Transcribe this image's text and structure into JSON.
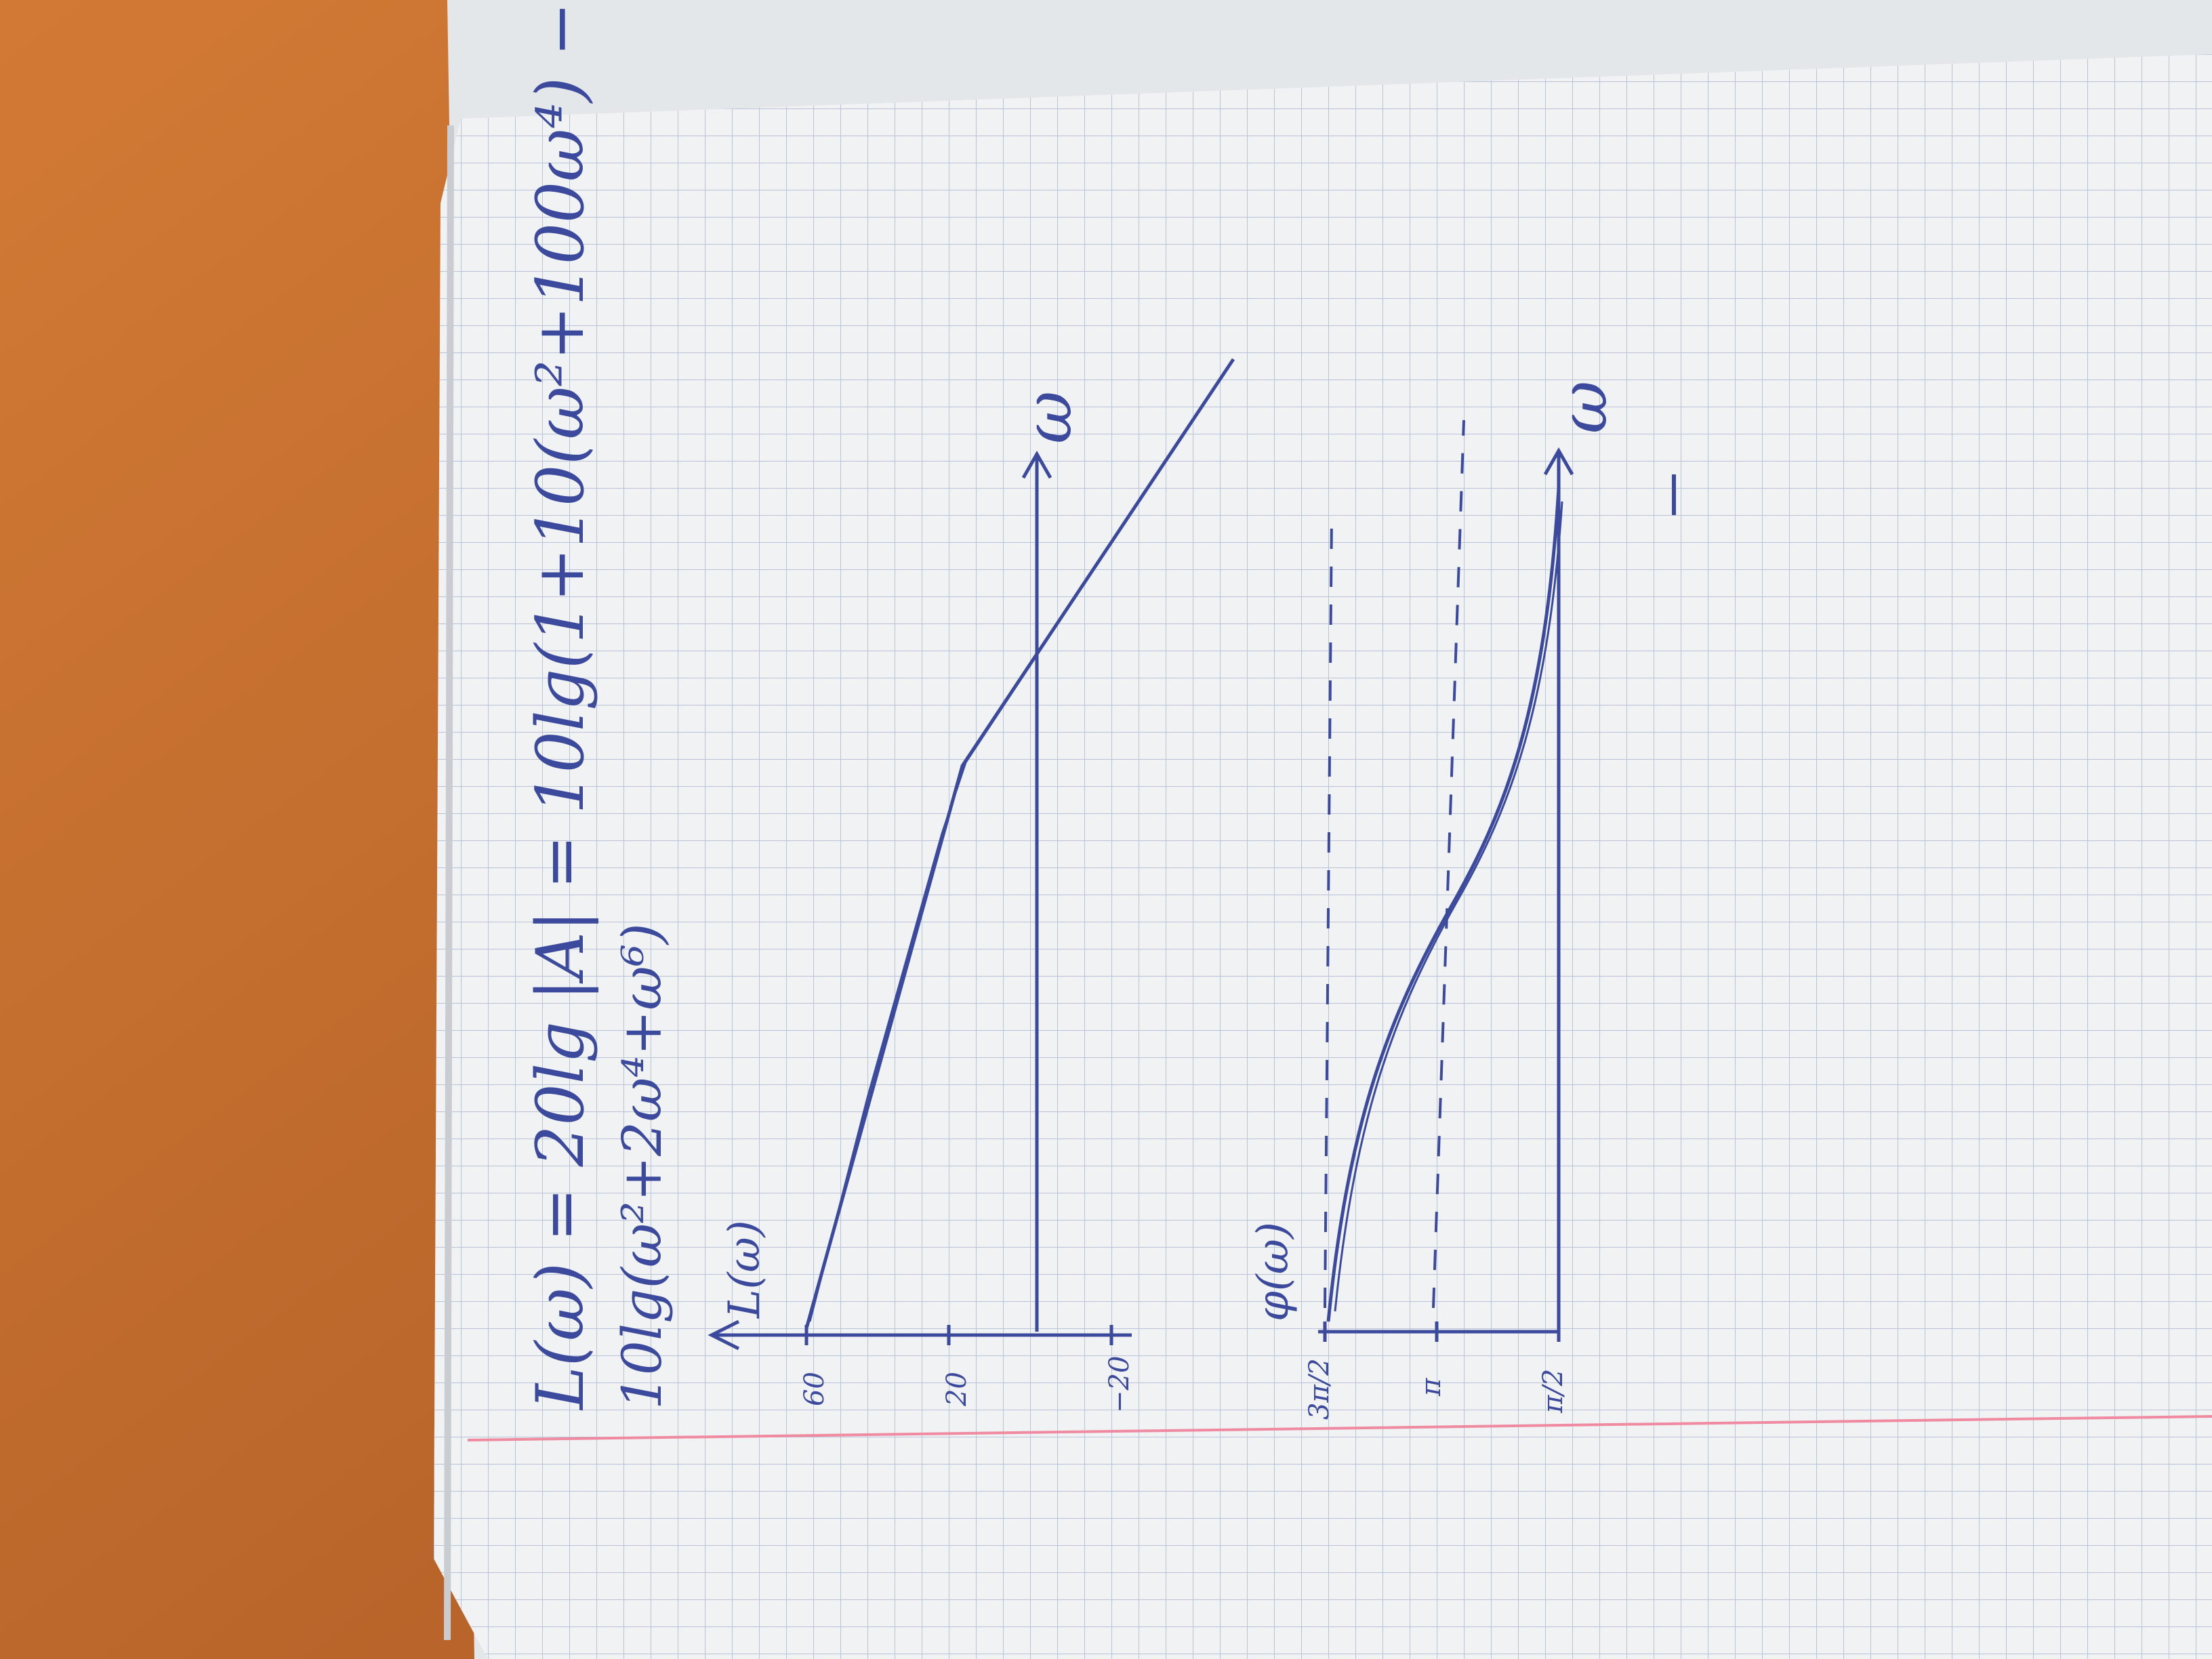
{
  "notebook": {
    "formula_line1": "L(ω) = 20lg |A| = 10lg(1+10(ω²+100ω⁴) −",
    "formula_line2": "10lg(ω²+2ω⁴+ω⁶)"
  },
  "plot_top": {
    "y_axis_label": "L(ω)",
    "x_axis_label": "ω",
    "y_ticks": [
      "60",
      "20",
      "−20"
    ]
  },
  "plot_bottom": {
    "y_axis_label": "φ(ω)",
    "x_axis_label": "ω",
    "y_ticks": [
      "3π/2",
      "π",
      "π/2"
    ]
  },
  "colors": {
    "table": "#c06a2a",
    "paper": "#f1f2f3",
    "grid": "#b9c3d8",
    "ink": "#3b4a9c",
    "margin_line": "#f08aa0"
  }
}
